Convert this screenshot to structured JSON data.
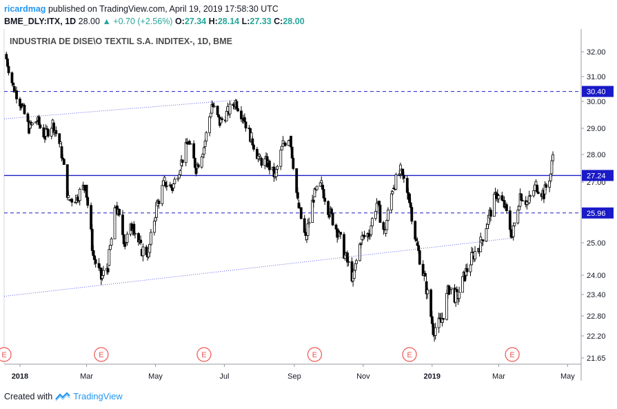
{
  "header": {
    "user": "ricardmag",
    "published_text": "published on TradingView.com, April 19, 2019 17:58:30 UTC",
    "symbol": "BME_DLY:ITX, 1D",
    "last": "28.00",
    "change_arrow": "▲",
    "change": "+0.70 (+2.56%)",
    "o_label": "O:",
    "o_val": "27.34",
    "h_label": "H:",
    "h_val": "28.14",
    "l_label": "L:",
    "l_val": "27.33",
    "c_label": "C:",
    "c_val": "28.00"
  },
  "footer": {
    "created_with": "Created with",
    "brand": "TradingView",
    "logo_icon": "tradingview-logo-icon"
  },
  "colors": {
    "accent": "#2196f3",
    "level_line": "#1a1ac8",
    "candle_up": "#ffffff",
    "candle_down": "#000000",
    "axis_text": "#131722"
  },
  "chart_data": {
    "type": "candlestick",
    "title": "INDUSTRIA DE DISE\\O TEXTIL S.A. INDITEX-, 1D, BME",
    "x_ticks": [
      "2018",
      "Mar",
      "May",
      "Jul",
      "Sep",
      "Nov",
      "2019",
      "Mar",
      "May"
    ],
    "y_ticks": [
      "32.00",
      "31.00",
      "30.00",
      "29.00",
      "28.00",
      "27.00",
      "26.00",
      "25.00",
      "24.00",
      "23.40",
      "22.80",
      "22.20",
      "21.65"
    ],
    "y_range": [
      21.5,
      32.6
    ],
    "x_range": [
      "2017-12-18",
      "2019-05-13"
    ],
    "earnings_marker": "E",
    "earnings_dates": [
      "2017-12-18",
      "2018-03-14",
      "2018-06-13",
      "2018-09-19",
      "2018-12-12",
      "2019-03-13"
    ],
    "horizontal_levels": [
      {
        "price": 30.4,
        "label": "30.40",
        "style": "dashed"
      },
      {
        "price": 27.24,
        "label": "27.24",
        "style": "solid"
      },
      {
        "price": 25.96,
        "label": "25.96",
        "style": "dashed"
      }
    ],
    "trend_lines": [
      {
        "from": [
          "2017-12-18",
          29.35
        ],
        "to": [
          "2018-07-10",
          30.05
        ],
        "style": "dotted"
      },
      {
        "from": [
          "2017-12-18",
          23.35
        ],
        "to": [
          "2019-03-13",
          25.15
        ],
        "style": "dotted"
      }
    ],
    "closes": [
      [
        "2017-12-20",
        31.9
      ],
      [
        "2017-12-27",
        30.6
      ],
      [
        "2018-01-03",
        29.9
      ],
      [
        "2018-01-10",
        29.0
      ],
      [
        "2018-01-17",
        29.3
      ],
      [
        "2018-01-24",
        28.7
      ],
      [
        "2018-01-31",
        29.2
      ],
      [
        "2018-02-07",
        28.3
      ],
      [
        "2018-02-14",
        26.4
      ],
      [
        "2018-02-21",
        26.5
      ],
      [
        "2018-03-01",
        26.9
      ],
      [
        "2018-03-08",
        24.6
      ],
      [
        "2018-03-15",
        23.9
      ],
      [
        "2018-03-21",
        24.3
      ],
      [
        "2018-03-28",
        26.2
      ],
      [
        "2018-04-05",
        25.0
      ],
      [
        "2018-04-12",
        25.6
      ],
      [
        "2018-04-19",
        24.8
      ],
      [
        "2018-04-26",
        24.7
      ],
      [
        "2018-05-03",
        26.2
      ],
      [
        "2018-05-10",
        27.0
      ],
      [
        "2018-05-17",
        26.8
      ],
      [
        "2018-05-24",
        27.6
      ],
      [
        "2018-05-31",
        28.5
      ],
      [
        "2018-06-07",
        27.5
      ],
      [
        "2018-06-14",
        28.3
      ],
      [
        "2018-06-21",
        29.9
      ],
      [
        "2018-06-28",
        29.2
      ],
      [
        "2018-07-05",
        29.6
      ],
      [
        "2018-07-12",
        30.0
      ],
      [
        "2018-07-19",
        29.4
      ],
      [
        "2018-07-26",
        28.6
      ],
      [
        "2018-08-02",
        27.8
      ],
      [
        "2018-08-09",
        27.7
      ],
      [
        "2018-08-16",
        27.2
      ],
      [
        "2018-08-23",
        28.4
      ],
      [
        "2018-08-29",
        28.7
      ],
      [
        "2018-09-05",
        26.3
      ],
      [
        "2018-09-12",
        25.1
      ],
      [
        "2018-09-19",
        26.5
      ],
      [
        "2018-09-26",
        26.9
      ],
      [
        "2018-10-03",
        26.0
      ],
      [
        "2018-10-10",
        25.4
      ],
      [
        "2018-10-17",
        24.6
      ],
      [
        "2018-10-24",
        23.9
      ],
      [
        "2018-10-31",
        25.1
      ],
      [
        "2018-11-07",
        25.3
      ],
      [
        "2018-11-14",
        26.3
      ],
      [
        "2018-11-21",
        25.3
      ],
      [
        "2018-11-28",
        26.8
      ],
      [
        "2018-12-05",
        27.4
      ],
      [
        "2018-12-12",
        26.6
      ],
      [
        "2018-12-19",
        25.0
      ],
      [
        "2018-12-27",
        23.8
      ],
      [
        "2019-01-03",
        22.4
      ],
      [
        "2019-01-10",
        22.6
      ],
      [
        "2019-01-17",
        23.6
      ],
      [
        "2019-01-24",
        23.3
      ],
      [
        "2019-01-31",
        24.0
      ],
      [
        "2019-02-07",
        24.6
      ],
      [
        "2019-02-14",
        25.0
      ],
      [
        "2019-02-21",
        25.8
      ],
      [
        "2019-02-28",
        26.6
      ],
      [
        "2019-03-07",
        26.2
      ],
      [
        "2019-03-14",
        25.2
      ],
      [
        "2019-03-21",
        26.6
      ],
      [
        "2019-03-28",
        26.3
      ],
      [
        "2019-04-04",
        26.9
      ],
      [
        "2019-04-11",
        26.6
      ],
      [
        "2019-04-17",
        27.3
      ],
      [
        "2019-04-19",
        28.0
      ]
    ]
  }
}
